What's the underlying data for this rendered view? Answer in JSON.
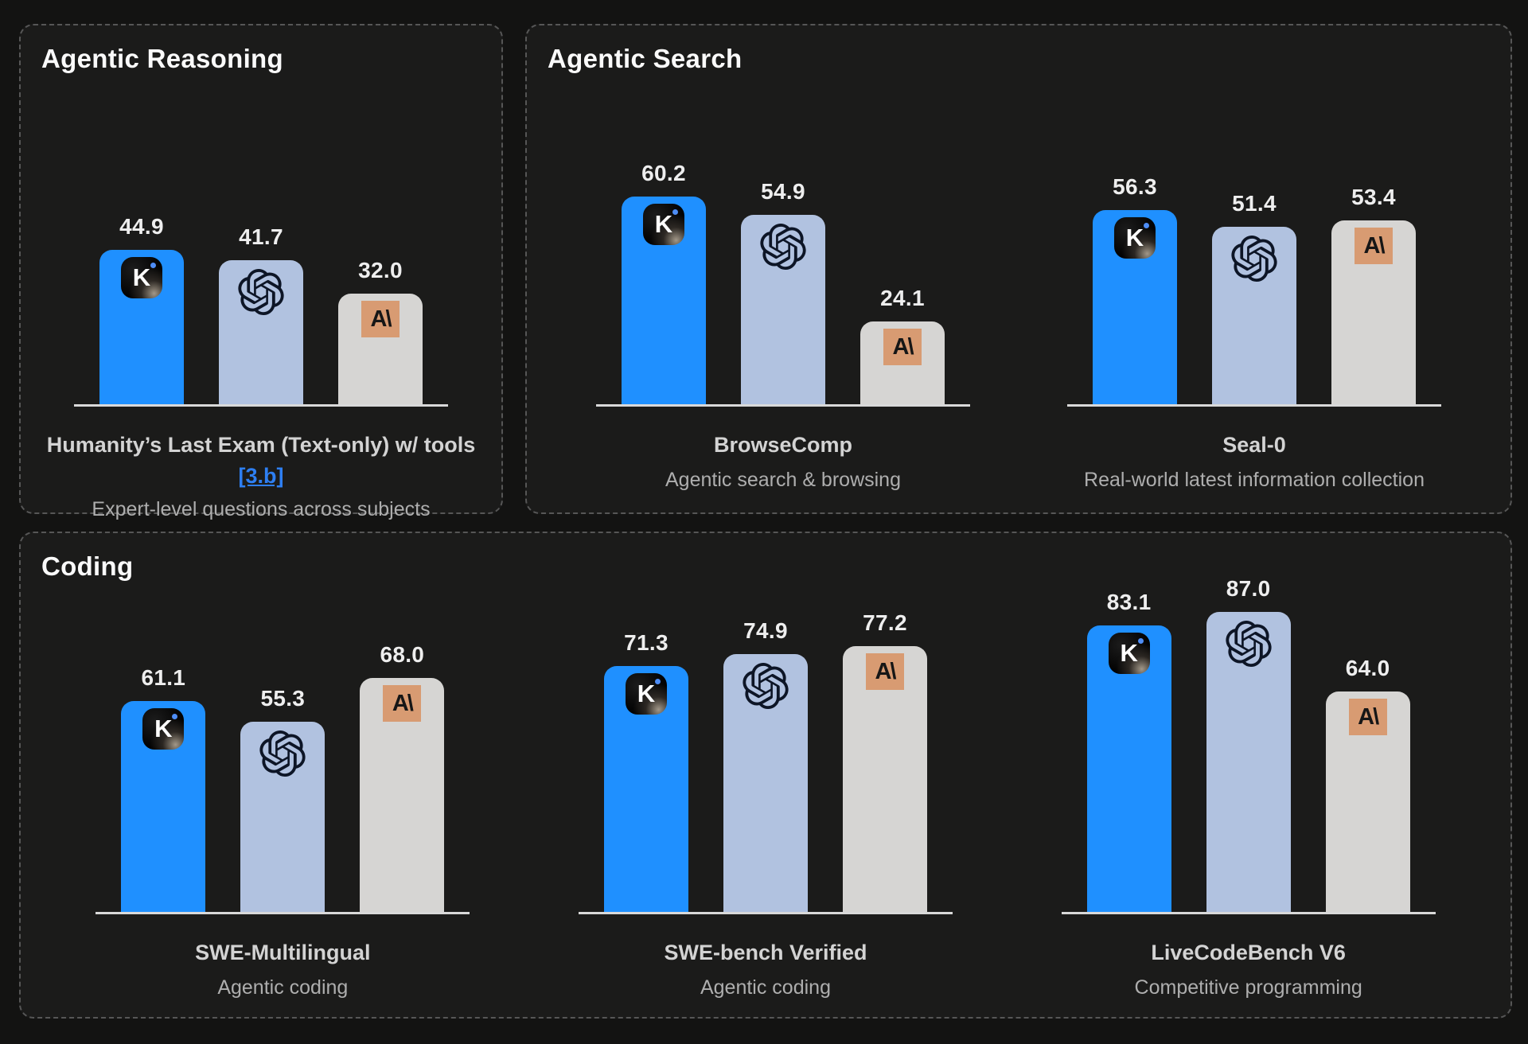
{
  "panels": [
    {
      "title": "Agentic Reasoning",
      "chart_indices": [
        0
      ]
    },
    {
      "title": "Agentic Search",
      "chart_indices": [
        1,
        2
      ]
    },
    {
      "title": "Coding",
      "chart_indices": [
        3,
        4,
        5
      ]
    }
  ],
  "models": [
    {
      "id": "kimi",
      "icon": "kimi-icon",
      "glyph": "K",
      "bar_color": "#1f90ff"
    },
    {
      "id": "openai",
      "icon": "openai-icon",
      "glyph": "",
      "bar_color": "#b1c2e0",
      "glyph_color": "#0d1526"
    },
    {
      "id": "anthropic",
      "icon": "anthropic-icon",
      "glyph": "A\\",
      "bar_color": "#d6d5d3",
      "icon_bg": "#d89b72"
    }
  ],
  "colors": {
    "page_background": "#131312",
    "panel_background": "#1b1b1a",
    "panel_border": "#565656",
    "axis_line": "#d9d9d9",
    "value_label": "#eeeeee",
    "benchmark_name": "#d3d3d3",
    "benchmark_subtitle": "#aeaeae",
    "link": "#2e7ff2",
    "kimi_bar": "#1f90ff",
    "openai_bar": "#b1c2e0",
    "anthropic_bar": "#d6d5d3",
    "anthropic_icon_background": "#d89b72"
  },
  "chart_data": [
    {
      "type": "bar",
      "panel": "Agentic Reasoning",
      "title": "Humanity’s Last Exam (Text-only) w/ tools",
      "link_label": "[3.b]",
      "subtitle": "Expert-level questions across subjects",
      "categories": [
        "Kimi",
        "OpenAI",
        "Anthropic"
      ],
      "values": [
        44.9,
        41.7,
        32.0
      ],
      "ylim": [
        0,
        100
      ],
      "grid": false,
      "legend": "none"
    },
    {
      "type": "bar",
      "panel": "Agentic Search",
      "title": "BrowseComp",
      "subtitle": "Agentic search & browsing",
      "categories": [
        "Kimi",
        "OpenAI",
        "Anthropic"
      ],
      "values": [
        60.2,
        54.9,
        24.1
      ],
      "ylim": [
        0,
        100
      ],
      "grid": false,
      "legend": "none"
    },
    {
      "type": "bar",
      "panel": "Agentic Search",
      "title": "Seal-0",
      "subtitle": "Real-world latest information collection",
      "categories": [
        "Kimi",
        "OpenAI",
        "Anthropic"
      ],
      "values": [
        56.3,
        51.4,
        53.4
      ],
      "ylim": [
        0,
        100
      ],
      "grid": false,
      "legend": "none"
    },
    {
      "type": "bar",
      "panel": "Coding",
      "title": "SWE-Multilingual",
      "subtitle": "Agentic coding",
      "categories": [
        "Kimi",
        "OpenAI",
        "Anthropic"
      ],
      "values": [
        61.1,
        55.3,
        68.0
      ],
      "ylim": [
        0,
        100
      ],
      "grid": false,
      "legend": "none"
    },
    {
      "type": "bar",
      "panel": "Coding",
      "title": "SWE-bench Verified",
      "subtitle": "Agentic coding",
      "categories": [
        "Kimi",
        "OpenAI",
        "Anthropic"
      ],
      "values": [
        71.3,
        74.9,
        77.2
      ],
      "ylim": [
        0,
        100
      ],
      "grid": false,
      "legend": "none"
    },
    {
      "type": "bar",
      "panel": "Coding",
      "title": "LiveCodeBench V6",
      "subtitle": "Competitive programming",
      "categories": [
        "Kimi",
        "OpenAI",
        "Anthropic"
      ],
      "values": [
        83.1,
        87.0,
        64.0
      ],
      "ylim": [
        0,
        100
      ],
      "grid": false,
      "legend": "none"
    }
  ]
}
